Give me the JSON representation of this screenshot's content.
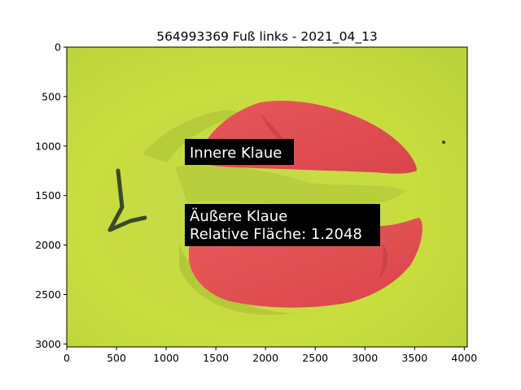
{
  "figure": {
    "title": "564993369 Fuß links - 2021_04_13",
    "image_extent": {
      "x": [
        0,
        4030
      ],
      "y": [
        3030,
        0
      ]
    },
    "x_ticks": [
      {
        "value": 0,
        "label": "0"
      },
      {
        "value": 500,
        "label": "500"
      },
      {
        "value": 1000,
        "label": "1000"
      },
      {
        "value": 1500,
        "label": "1500"
      },
      {
        "value": 2000,
        "label": "2000"
      },
      {
        "value": 2500,
        "label": "2500"
      },
      {
        "value": 3000,
        "label": "3000"
      },
      {
        "value": 3500,
        "label": "3500"
      },
      {
        "value": 4000,
        "label": "4000"
      }
    ],
    "y_ticks": [
      {
        "value": 0,
        "label": "0"
      },
      {
        "value": 500,
        "label": "500"
      },
      {
        "value": 1000,
        "label": "1000"
      },
      {
        "value": 1500,
        "label": "1500"
      },
      {
        "value": 2000,
        "label": "2000"
      },
      {
        "value": 2500,
        "label": "2500"
      },
      {
        "value": 3000,
        "label": "3000"
      }
    ],
    "annotations": [
      {
        "id": "inner",
        "lines": [
          "Innere Klaue"
        ],
        "at": [
          1200,
          1060
        ]
      },
      {
        "id": "outer",
        "lines": [
          "Äußere Klaue",
          "Relative Fläche: 1.2048"
        ],
        "at": [
          1200,
          1700
        ]
      }
    ],
    "colors": {
      "background_green": "#c6dc43",
      "claw_red": "#e24c52",
      "annotation_box": "#000000",
      "annotation_text": "#ffffff"
    }
  }
}
